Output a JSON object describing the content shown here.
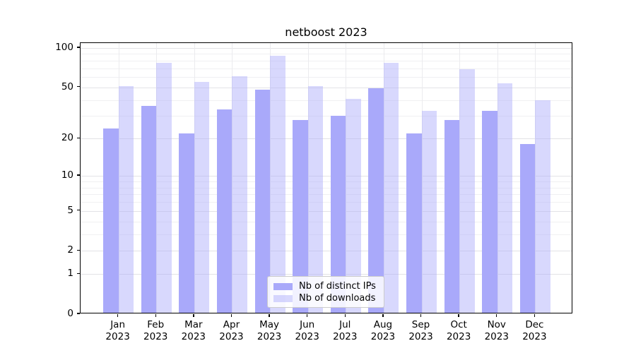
{
  "chart_data": {
    "type": "bar",
    "title": "netboost 2023",
    "months": [
      "Jan",
      "Feb",
      "Mar",
      "Apr",
      "May",
      "Jun",
      "Jul",
      "Aug",
      "Sep",
      "Oct",
      "Nov",
      "Dec"
    ],
    "year": "2023",
    "series": [
      {
        "name": "Nb of distinct IPs",
        "color": "#a9a9fa",
        "alpha": 1,
        "values": [
          24,
          36,
          22,
          34,
          48,
          28,
          30,
          49,
          22,
          28,
          33,
          18
        ]
      },
      {
        "name": "Nb of downloads",
        "color": "#a9a9fa",
        "alpha": 0.45,
        "values": [
          51,
          77,
          55,
          61,
          87,
          51,
          41,
          77,
          33,
          69,
          54,
          40
        ]
      }
    ],
    "yscale": "log(value+1)",
    "yticks": [
      100,
      50,
      20,
      10,
      5,
      2,
      1,
      0
    ],
    "minor_gridlines": [
      3,
      4,
      6,
      7,
      8,
      9,
      30,
      40,
      60,
      70,
      80,
      90
    ],
    "ylim": [
      0,
      109
    ],
    "grid": "both",
    "legend_position": "lower center",
    "bar_group": "side-by-side, bars touch at month tick"
  }
}
